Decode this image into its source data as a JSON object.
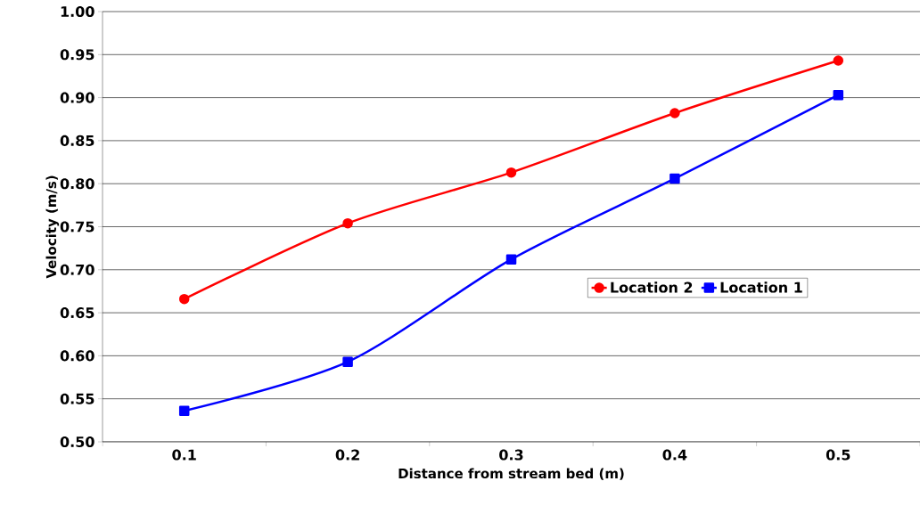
{
  "chart_data": {
    "type": "line",
    "xlabel": "Distance from stream bed (m)",
    "ylabel": "Velocity (m/s)",
    "categories": [
      "0.1",
      "0.2",
      "0.3",
      "0.4",
      "0.5"
    ],
    "series": [
      {
        "name": "Location 2",
        "color": "#ff0000",
        "marker": "circle",
        "values": [
          0.666,
          0.754,
          0.813,
          0.882,
          0.943
        ]
      },
      {
        "name": "Location 1",
        "color": "#0000ff",
        "marker": "square",
        "values": [
          0.536,
          0.593,
          0.712,
          0.806,
          0.903
        ]
      }
    ],
    "ylim": [
      0.5,
      1.0
    ],
    "yticks": [
      {
        "value": 0.5,
        "label": "0.50"
      },
      {
        "value": 0.55,
        "label": "0.55"
      },
      {
        "value": 0.6,
        "label": "0.60"
      },
      {
        "value": 0.65,
        "label": "0.65"
      },
      {
        "value": 0.7,
        "label": "0.70"
      },
      {
        "value": 0.75,
        "label": "0.75"
      },
      {
        "value": 0.8,
        "label": "0.80"
      },
      {
        "value": 0.85,
        "label": "0.85"
      },
      {
        "value": 0.9,
        "label": "0.90"
      },
      {
        "value": 0.95,
        "label": "0.95"
      },
      {
        "value": 1.0,
        "label": "1.00"
      }
    ],
    "grid": "y",
    "legend": "right"
  }
}
